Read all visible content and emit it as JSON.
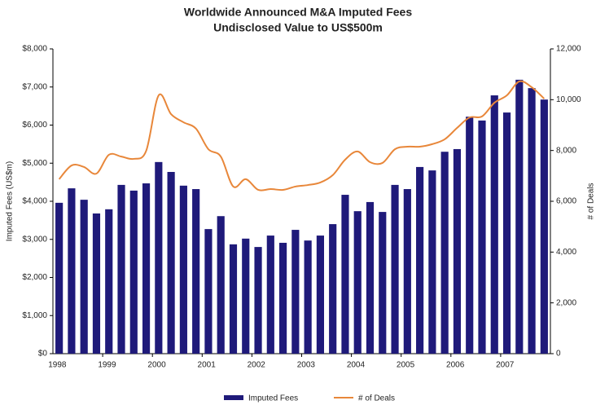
{
  "chart_data": {
    "type": "bar_line",
    "title": "Worldwide Announced M&A Imputed Fees",
    "subtitle": "Undisclosed Value to US$500m",
    "y_label": "Imputed Fees (US$m)",
    "y2_label": "# of Deals",
    "categories": [
      "1998",
      null,
      null,
      null,
      "1999",
      null,
      null,
      null,
      "2000",
      null,
      null,
      null,
      "2001",
      null,
      null,
      null,
      "2002",
      null,
      null,
      null,
      "2003",
      null,
      null,
      null,
      "2004",
      null,
      null,
      null,
      "2005",
      null,
      null,
      null,
      "2006",
      null,
      null,
      null,
      "2007",
      null,
      null,
      null
    ],
    "series": [
      {
        "name": "Imputed Fees",
        "type": "bar",
        "color": "#1f1a7a",
        "values": [
          3960,
          4340,
          4040,
          3680,
          3790,
          4430,
          4280,
          4470,
          5030,
          4770,
          4410,
          4320,
          3270,
          3610,
          2870,
          3020,
          2800,
          3100,
          2910,
          3250,
          2970,
          3100,
          3400,
          4170,
          3740,
          3980,
          3720,
          4430,
          4320,
          4900,
          4810,
          5300,
          5370,
          6220,
          6120,
          6780,
          6330,
          7190,
          6970,
          6670
        ]
      },
      {
        "name": "# of Deals",
        "type": "line",
        "axis": "y2",
        "color": "#e8873a",
        "values": [
          6870,
          7410,
          7350,
          7090,
          7830,
          7760,
          7670,
          7990,
          10170,
          9430,
          9110,
          8860,
          8050,
          7760,
          6580,
          6870,
          6450,
          6480,
          6450,
          6580,
          6640,
          6740,
          7030,
          7640,
          7960,
          7540,
          7510,
          8050,
          8150,
          8150,
          8250,
          8440,
          8890,
          9300,
          9340,
          9880,
          10170,
          10720,
          10490,
          10040
        ]
      }
    ],
    "ylim": [
      0,
      8000
    ],
    "yticks": [
      {
        "value": 0,
        "label": "$0"
      },
      {
        "value": 1000,
        "label": "$1,000"
      },
      {
        "value": 2000,
        "label": "$2,000"
      },
      {
        "value": 3000,
        "label": "$3,000"
      },
      {
        "value": 4000,
        "label": "$4,000"
      },
      {
        "value": 5000,
        "label": "$5,000"
      },
      {
        "value": 6000,
        "label": "$6,000"
      },
      {
        "value": 7000,
        "label": "$7,000"
      },
      {
        "value": 8000,
        "label": "$8,000"
      }
    ],
    "y2lim": [
      0,
      12000
    ],
    "y2ticks": [
      0,
      {
        "value": 2000,
        "label": "2,000"
      },
      {
        "value": 4000,
        "label": "4,000"
      },
      {
        "value": 6000,
        "label": "6,000"
      },
      {
        "value": 8000,
        "label": "8,000"
      },
      {
        "value": 10000,
        "label": "10,000"
      },
      {
        "value": 12000,
        "label": "12,000"
      }
    ],
    "grid": false,
    "legend": "bottom"
  }
}
